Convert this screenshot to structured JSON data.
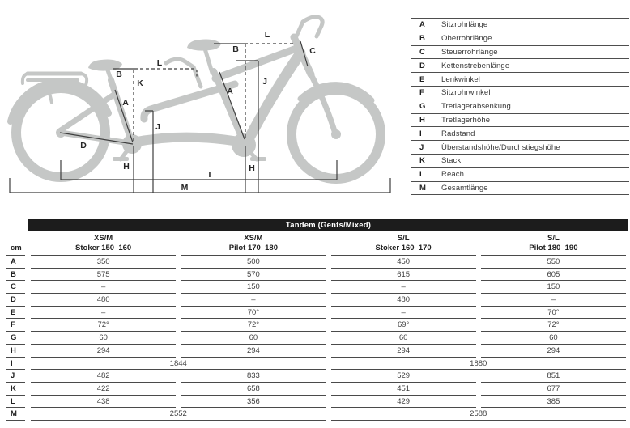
{
  "diagram": {
    "marks": [
      {
        "id": "rear-top-tube-length",
        "letter": "L"
      },
      {
        "id": "rear-oberrohr",
        "letter": "B"
      },
      {
        "id": "rear-stack",
        "letter": "K"
      },
      {
        "id": "rear-seat-tube",
        "letter": "A"
      },
      {
        "id": "rear-standover",
        "letter": "J"
      },
      {
        "id": "chainstay",
        "letter": "D"
      },
      {
        "id": "rear-bb-height",
        "letter": "H"
      },
      {
        "id": "front-top-tube-length",
        "letter": "L"
      },
      {
        "id": "front-oberrohr",
        "letter": "B"
      },
      {
        "id": "head-tube",
        "letter": "C"
      },
      {
        "id": "front-seat-tube",
        "letter": "A"
      },
      {
        "id": "front-standover",
        "letter": "J"
      },
      {
        "id": "front-bb-height",
        "letter": "H"
      },
      {
        "id": "wheelbase",
        "letter": "I"
      },
      {
        "id": "overall-length",
        "letter": "M"
      }
    ]
  },
  "legend": {
    "rows": [
      {
        "key": "A",
        "label": "Sitzrohrlänge"
      },
      {
        "key": "B",
        "label": "Oberrohrlänge"
      },
      {
        "key": "C",
        "label": "Steuerrohrlänge"
      },
      {
        "key": "D",
        "label": "Kettenstrebenlänge"
      },
      {
        "key": "E",
        "label": "Lenkwinkel"
      },
      {
        "key": "F",
        "label": "Sitzrohrwinkel"
      },
      {
        "key": "G",
        "label": "Tretlagerabsenkung"
      },
      {
        "key": "H",
        "label": "Tretlagerhöhe"
      },
      {
        "key": "I",
        "label": "Radstand"
      },
      {
        "key": "J",
        "label": "Überstandshöhe/Durchstiegshöhe"
      },
      {
        "key": "K",
        "label": "Stack"
      },
      {
        "key": "L",
        "label": "Reach"
      },
      {
        "key": "M",
        "label": "Gesamtlänge"
      }
    ]
  },
  "table": {
    "title": "Tandem (Gents/Mixed)",
    "unit": "cm",
    "columns": [
      {
        "size": "XS/M",
        "rider": "Stoker 150–160"
      },
      {
        "size": "XS/M",
        "rider": "Pilot 170–180"
      },
      {
        "size": "S/L",
        "rider": "Stoker 160–170"
      },
      {
        "size": "S/L",
        "rider": "Pilot 180–190"
      }
    ],
    "rows": [
      {
        "key": "A",
        "values": [
          "350",
          "500",
          "450",
          "550"
        ]
      },
      {
        "key": "B",
        "values": [
          "575",
          "570",
          "615",
          "605"
        ]
      },
      {
        "key": "C",
        "values": [
          "–",
          "150",
          "–",
          "150"
        ]
      },
      {
        "key": "D",
        "values": [
          "480",
          "–",
          "480",
          "–"
        ]
      },
      {
        "key": "E",
        "values": [
          "–",
          "70°",
          "–",
          "70°"
        ]
      },
      {
        "key": "F",
        "values": [
          "72°",
          "72°",
          "69°",
          "72°"
        ]
      },
      {
        "key": "G",
        "values": [
          "60",
          "60",
          "60",
          "60"
        ]
      },
      {
        "key": "H",
        "values": [
          "294",
          "294",
          "294",
          "294"
        ]
      },
      {
        "key": "I",
        "values": [
          "1844",
          "1880"
        ],
        "span": 2
      },
      {
        "key": "J",
        "values": [
          "482",
          "833",
          "529",
          "851"
        ]
      },
      {
        "key": "K",
        "values": [
          "422",
          "658",
          "451",
          "677"
        ]
      },
      {
        "key": "L",
        "values": [
          "438",
          "356",
          "429",
          "385"
        ]
      },
      {
        "key": "M",
        "values": [
          "2552",
          "2588"
        ],
        "span": 2
      }
    ]
  },
  "colors": {
    "title_bar": "#1c1c1c",
    "silhouette": "#c5c7c6",
    "dimension_lines": "#3e3e3e",
    "table_lines": "#4a4a4a"
  }
}
